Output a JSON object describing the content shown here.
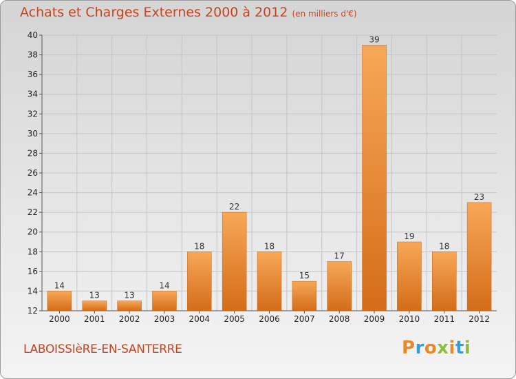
{
  "header": {
    "title": "Achats et Charges Externes 2000 à 2012",
    "subtitle": "(en milliers d'€)"
  },
  "footer": {
    "commune": "LABOISSIèRE-EN-SANTERRE",
    "logo_text": "Proxiti",
    "logo_colors": [
      "#e9892a",
      "#3b9ad9",
      "#e9892a",
      "#8cbf3f",
      "#e9892a",
      "#3b9ad9",
      "#8cbf3f"
    ]
  },
  "colors": {
    "bar_light": "#f7a857",
    "bar_dark": "#d46c18",
    "bar_edge": "#c96516",
    "grid": "#c4c4c4",
    "axis": "#555555",
    "title": "#c8441f"
  },
  "chart_data": {
    "type": "bar",
    "title": "Achats et Charges Externes 2000 à 2012",
    "subtitle": "(en milliers d'€)",
    "categories": [
      "2000",
      "2001",
      "2002",
      "2003",
      "2004",
      "2005",
      "2006",
      "2007",
      "2008",
      "2009",
      "2010",
      "2011",
      "2012"
    ],
    "values": [
      14,
      13,
      13,
      14,
      18,
      22,
      18,
      15,
      17,
      39,
      19,
      18,
      23
    ],
    "ylim": [
      12,
      40
    ],
    "yticks": [
      12,
      14,
      16,
      18,
      20,
      22,
      24,
      26,
      28,
      30,
      32,
      34,
      36,
      38,
      40
    ],
    "grid": true,
    "data_labels": true
  }
}
